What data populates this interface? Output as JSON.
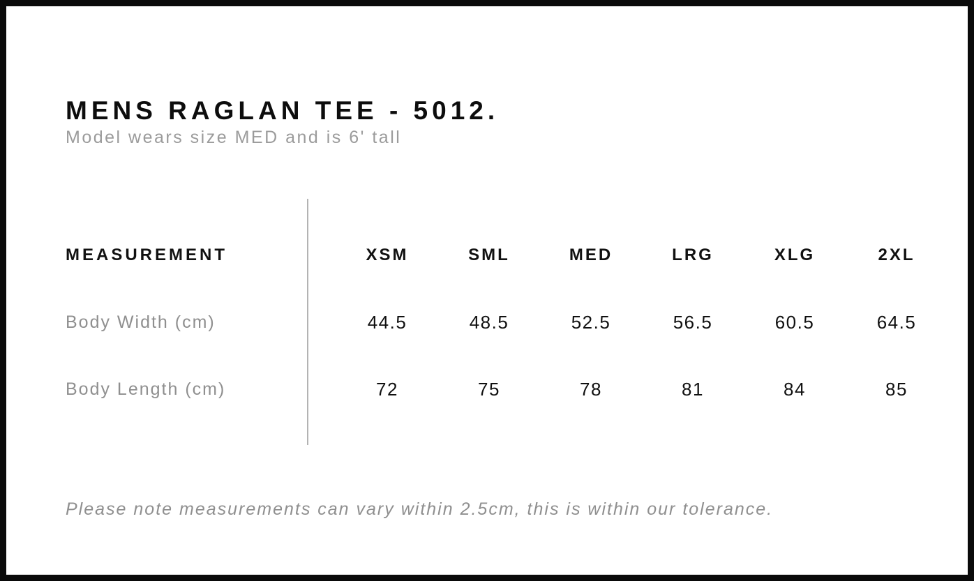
{
  "page": {
    "title": "MENS RAGLAN TEE - 5012.",
    "subtitle": "Model wears size MED and is 6' tall",
    "footnote": "Please note measurements can vary within 2.5cm, this is within our tolerance."
  },
  "size_chart": {
    "measurement_header": "MEASUREMENT",
    "sizes": [
      "XSM",
      "SML",
      "MED",
      "LRG",
      "XLG",
      "2XL"
    ],
    "rows": [
      {
        "label": "Body Width (cm)",
        "values": [
          "44.5",
          "48.5",
          "52.5",
          "56.5",
          "60.5",
          "64.5"
        ]
      },
      {
        "label": "Body Length (cm)",
        "values": [
          "72",
          "75",
          "78",
          "81",
          "84",
          "85"
        ]
      }
    ]
  },
  "colors": {
    "frame_border": "#0a0a0a",
    "text_black": "#111111",
    "text_gray": "#8f8f8f",
    "divider_gray": "#b3b3b3",
    "background": "#ffffff"
  }
}
